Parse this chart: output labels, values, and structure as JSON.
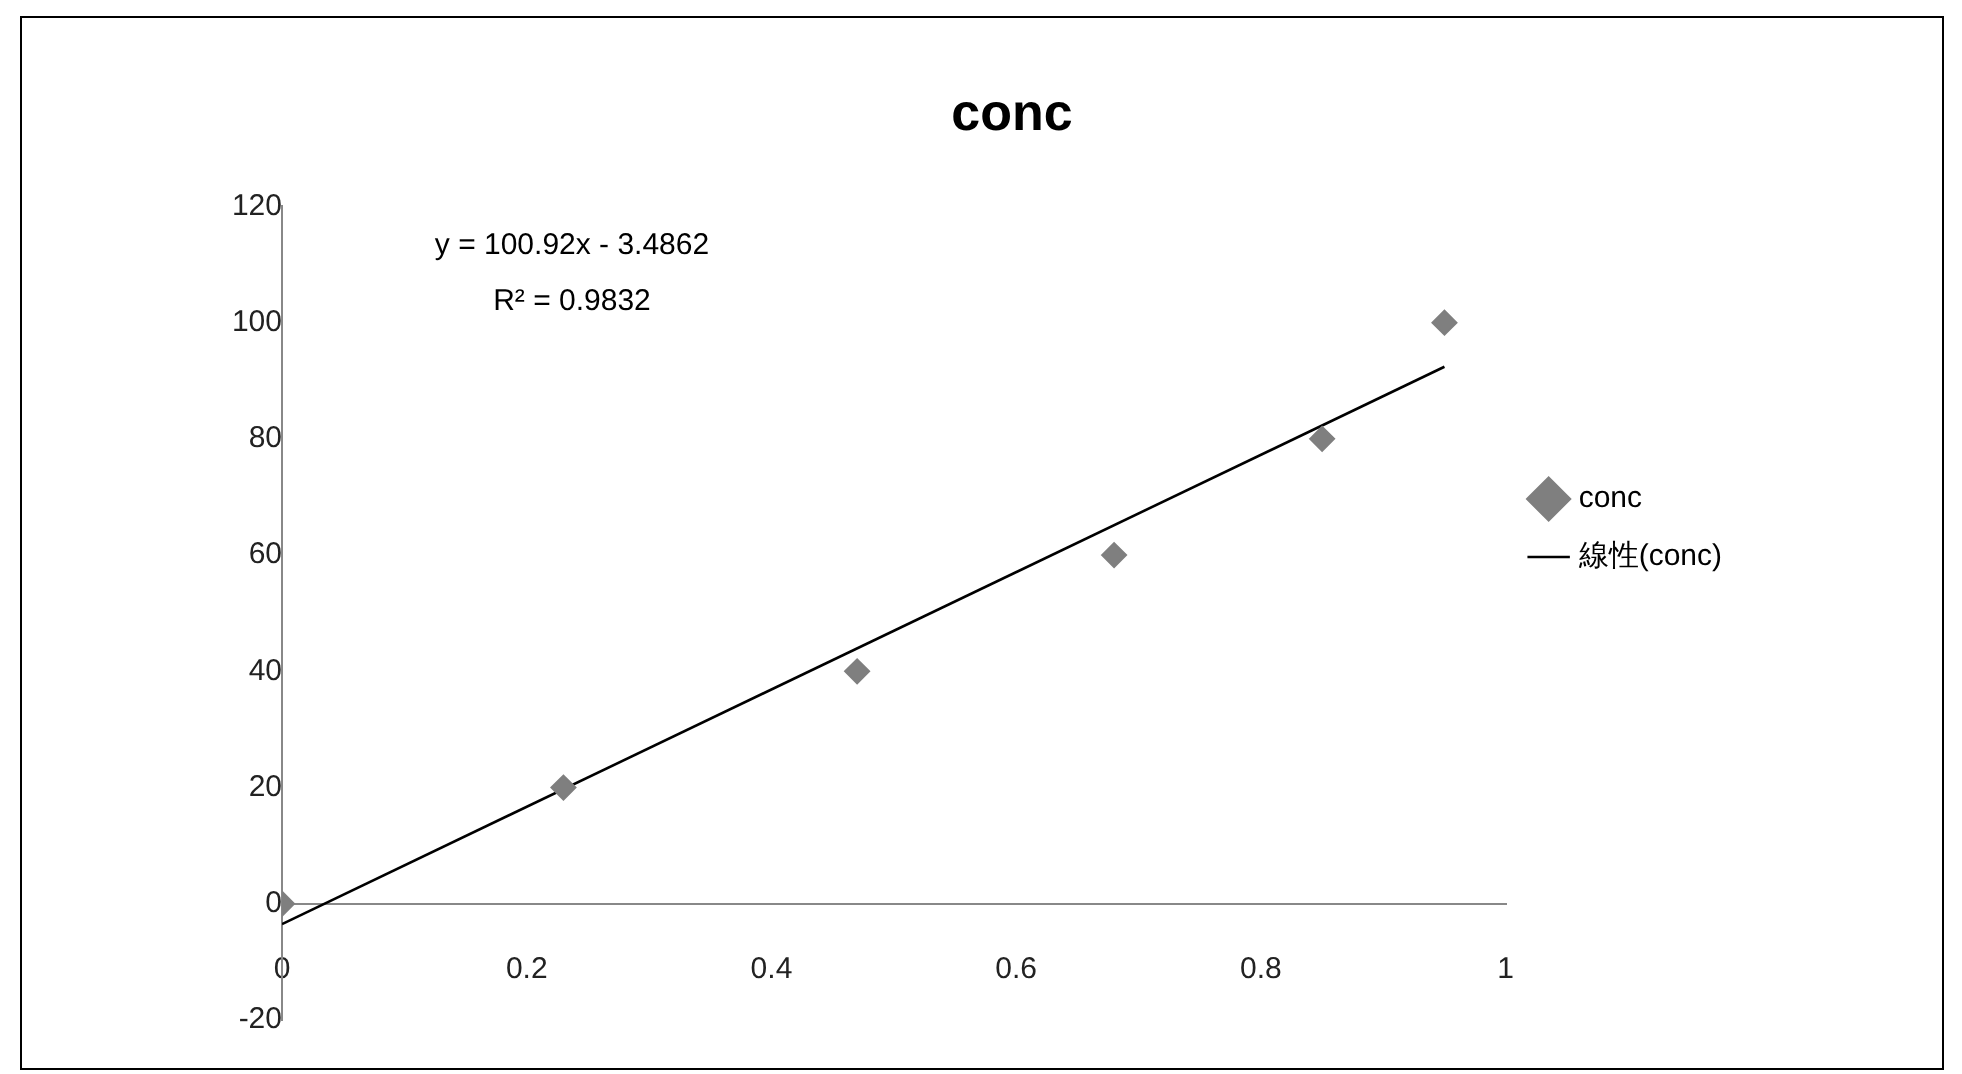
{
  "chart_data": {
    "type": "scatter",
    "title": "conc",
    "series": [
      {
        "name": "conc",
        "type": "scatter",
        "color": "#7f7f7f",
        "marker": "diamond",
        "x": [
          0,
          0.23,
          0.47,
          0.68,
          0.85,
          0.95
        ],
        "values": [
          0,
          20,
          40,
          60,
          80,
          100
        ]
      },
      {
        "name": "線性(conc)",
        "type": "line",
        "color": "#000000",
        "marker": "none",
        "line_style": "solid",
        "x": [
          0,
          0.95
        ],
        "values": [
          -3.5,
          92.4
        ]
      }
    ],
    "xlim": [
      0,
      1
    ],
    "xticks": [
      0,
      0.2,
      0.4,
      0.6,
      0.8,
      1
    ],
    "ylim": [
      -20,
      120
    ],
    "yticks": [
      -20,
      0,
      20,
      40,
      60,
      80,
      100,
      120
    ],
    "grid": false,
    "legend": "right",
    "annotations": [
      "y = 100.92x - 3.4862",
      "R² = 0.9832"
    ]
  }
}
